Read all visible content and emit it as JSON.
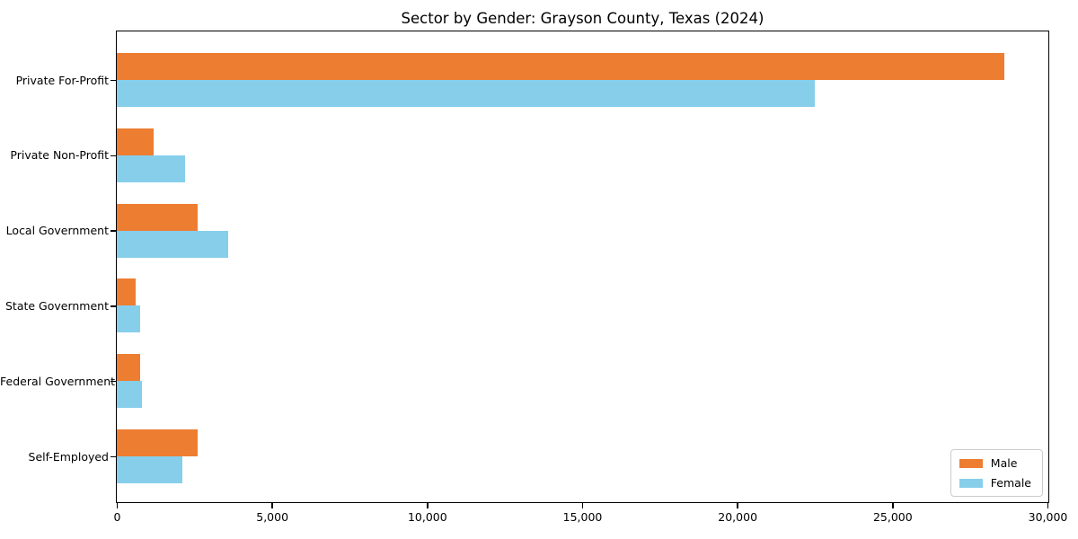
{
  "chart_data": {
    "type": "bar",
    "orientation": "horizontal",
    "title": "Sector by Gender: Grayson County, Texas (2024)",
    "xlabel": "",
    "ylabel": "",
    "grid": false,
    "categories": [
      "Private For-Profit",
      "Private Non-Profit",
      "Local Government",
      "State Government",
      "Federal Government",
      "Self-Employed"
    ],
    "series": [
      {
        "name": "Male",
        "color": "#ED7D31",
        "values": [
          28600,
          1200,
          2600,
          600,
          750,
          2600
        ]
      },
      {
        "name": "Female",
        "color": "#87CEEB",
        "values": [
          22500,
          2200,
          3600,
          750,
          800,
          2100
        ]
      }
    ],
    "xlim": [
      0,
      30000
    ],
    "xticks": {
      "values": [
        0,
        5000,
        10000,
        15000,
        20000,
        25000,
        30000
      ],
      "labels": [
        "0",
        "5,000",
        "10,000",
        "15,000",
        "20,000",
        "25,000",
        "30,000"
      ]
    },
    "legend": {
      "position": "lower right",
      "entries": [
        "Male",
        "Female"
      ]
    }
  }
}
